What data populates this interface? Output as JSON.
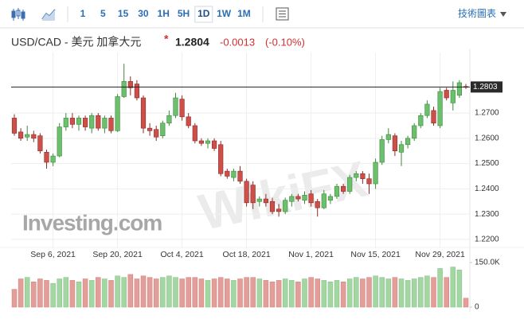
{
  "toolbar": {
    "intervals": [
      "1",
      "5",
      "15",
      "30",
      "1H",
      "5H",
      "1D",
      "1W",
      "1M"
    ],
    "active": "1D",
    "menu": "技術圖表"
  },
  "header": {
    "symbol": "USD/CAD - 美元 加拿大元",
    "marker": "*",
    "price": "1.2804",
    "change": "-0.0013",
    "change_percent": "(-0.10%)"
  },
  "watermarks": [
    "Investing.com",
    "WikiFX"
  ],
  "chart_data": {
    "type": "candlestick",
    "categories": [
      null,
      null,
      null,
      null,
      null,
      null,
      "Sep 6, 2021",
      null,
      null,
      null,
      null,
      null,
      null,
      null,
      null,
      null,
      "Sep 20, 2021",
      null,
      null,
      null,
      null,
      null,
      null,
      null,
      null,
      null,
      "Oct 4, 2021",
      null,
      null,
      null,
      null,
      null,
      null,
      null,
      null,
      null,
      "Oct 18, 2021",
      null,
      null,
      null,
      null,
      null,
      null,
      null,
      null,
      null,
      "Nov 1, 2021",
      null,
      null,
      null,
      null,
      null,
      null,
      null,
      null,
      null,
      "Nov 15, 2021",
      null,
      null,
      null,
      null,
      null,
      null,
      null,
      null,
      null,
      "Nov 29, 2021",
      null,
      null,
      null,
      null
    ],
    "open": [
      1.268,
      1.2625,
      1.2605,
      1.2615,
      1.261,
      1.2545,
      1.2505,
      1.253,
      1.2645,
      1.268,
      1.2655,
      1.268,
      1.264,
      1.269,
      1.264,
      1.268,
      1.263,
      1.2765,
      1.2825,
      1.2815,
      1.276,
      1.264,
      1.2635,
      1.261,
      1.266,
      1.269,
      1.2755,
      1.2685,
      1.265,
      1.259,
      1.258,
      1.259,
      1.2575,
      1.247,
      1.2445,
      1.247,
      1.243,
      1.2415,
      1.235,
      1.236,
      1.235,
      1.232,
      1.231,
      1.235,
      1.237,
      1.2355,
      1.238,
      1.235,
      1.2325,
      1.2355,
      1.237,
      1.241,
      1.239,
      1.2445,
      1.246,
      1.244,
      1.242,
      1.2505,
      1.2595,
      1.261,
      1.2545,
      1.2575,
      1.26,
      1.265,
      1.269,
      1.271,
      1.265,
      1.279,
      1.274,
      1.277,
      1.2805
    ],
    "high": [
      1.2695,
      1.264,
      1.265,
      1.263,
      1.262,
      1.2555,
      1.254,
      1.266,
      1.27,
      1.27,
      1.269,
      1.269,
      1.27,
      1.27,
      1.269,
      1.269,
      1.2775,
      1.2895,
      1.2845,
      1.283,
      1.277,
      1.266,
      1.265,
      1.267,
      1.271,
      1.278,
      1.277,
      1.27,
      1.266,
      1.26,
      1.26,
      1.26,
      1.259,
      1.248,
      1.248,
      1.249,
      1.244,
      1.243,
      1.237,
      1.238,
      1.2365,
      1.234,
      1.2365,
      1.238,
      1.238,
      1.239,
      1.2395,
      1.236,
      1.2395,
      1.238,
      1.242,
      1.242,
      1.2455,
      1.247,
      1.247,
      1.246,
      1.252,
      1.261,
      1.264,
      1.262,
      1.259,
      1.261,
      1.266,
      1.27,
      1.275,
      1.2725,
      1.28,
      1.28,
      1.2825,
      1.283,
      1.2815
    ],
    "low": [
      1.261,
      1.259,
      1.259,
      1.2585,
      1.254,
      1.248,
      1.249,
      1.2525,
      1.263,
      1.264,
      1.263,
      1.263,
      1.262,
      1.263,
      1.262,
      1.262,
      1.2625,
      1.276,
      1.277,
      1.275,
      1.262,
      1.261,
      1.259,
      1.26,
      1.265,
      1.268,
      1.267,
      1.264,
      1.258,
      1.257,
      1.256,
      1.255,
      1.245,
      1.244,
      1.243,
      1.242,
      1.233,
      1.232,
      1.233,
      1.233,
      1.23,
      1.229,
      1.23,
      1.233,
      1.235,
      1.234,
      1.233,
      1.229,
      1.232,
      1.234,
      1.236,
      1.238,
      1.238,
      1.243,
      1.242,
      1.238,
      1.24,
      1.2495,
      1.258,
      1.253,
      1.249,
      1.256,
      1.259,
      1.264,
      1.268,
      1.265,
      1.264,
      1.275,
      1.271,
      1.276,
      1.2795
    ],
    "close": [
      1.262,
      1.26,
      1.2615,
      1.26,
      1.255,
      1.2505,
      1.253,
      1.2645,
      1.268,
      1.2655,
      1.268,
      1.2645,
      1.269,
      1.264,
      1.268,
      1.263,
      1.2765,
      1.2825,
      1.28,
      1.276,
      1.264,
      1.263,
      1.2605,
      1.266,
      1.269,
      1.276,
      1.2685,
      1.265,
      1.259,
      1.258,
      1.259,
      1.256,
      1.246,
      1.245,
      1.247,
      1.243,
      1.2345,
      1.2345,
      1.236,
      1.2345,
      1.231,
      1.231,
      1.2355,
      1.237,
      1.236,
      1.2375,
      1.2345,
      1.2325,
      1.238,
      1.237,
      1.241,
      1.239,
      1.2445,
      1.246,
      1.244,
      1.242,
      1.2505,
      1.2595,
      1.2615,
      1.255,
      1.2575,
      1.26,
      1.265,
      1.269,
      1.2735,
      1.266,
      1.2785,
      1.276,
      1.279,
      1.282,
      1.2803
    ],
    "volume": [
      60000,
      95000,
      100000,
      85000,
      95000,
      90000,
      80000,
      95000,
      100000,
      90000,
      85000,
      95000,
      90000,
      100000,
      95000,
      90000,
      105000,
      100000,
      110000,
      95000,
      105000,
      100000,
      95000,
      100000,
      105000,
      100000,
      95000,
      100000,
      100000,
      95000,
      90000,
      95000,
      100000,
      95000,
      90000,
      95000,
      100000,
      100000,
      95000,
      90000,
      85000,
      90000,
      95000,
      90000,
      85000,
      95000,
      100000,
      95000,
      90000,
      85000,
      90000,
      85000,
      95000,
      100000,
      95000,
      100000,
      105000,
      100000,
      95000,
      100000,
      95000,
      90000,
      95000,
      100000,
      105000,
      100000,
      130000,
      100000,
      135000,
      125000,
      30000
    ],
    "up_color": "#6cbf6c",
    "down_color": "#cd4f4a",
    "volume_up_color": "#a3d6a3",
    "volume_down_color": "#e39e9a",
    "ylim": [
      1.2165,
      1.2908
    ],
    "yticks": [
      {
        "value": 1.22,
        "label": "1.2200"
      },
      {
        "value": 1.23,
        "label": "1.2300"
      },
      {
        "value": 1.24,
        "label": "1.2400"
      },
      {
        "value": 1.25,
        "label": "1.2500"
      },
      {
        "value": 1.26,
        "label": "1.2600"
      },
      {
        "value": 1.27,
        "label": "1.2700"
      }
    ],
    "last_price": {
      "value": 1.2803,
      "label": "1.2803"
    },
    "volume_ylim": [
      0,
      150000
    ],
    "volume_yticks": [
      0,
      {
        "value": 150000,
        "label": "150.0K"
      }
    ],
    "grid": true
  }
}
